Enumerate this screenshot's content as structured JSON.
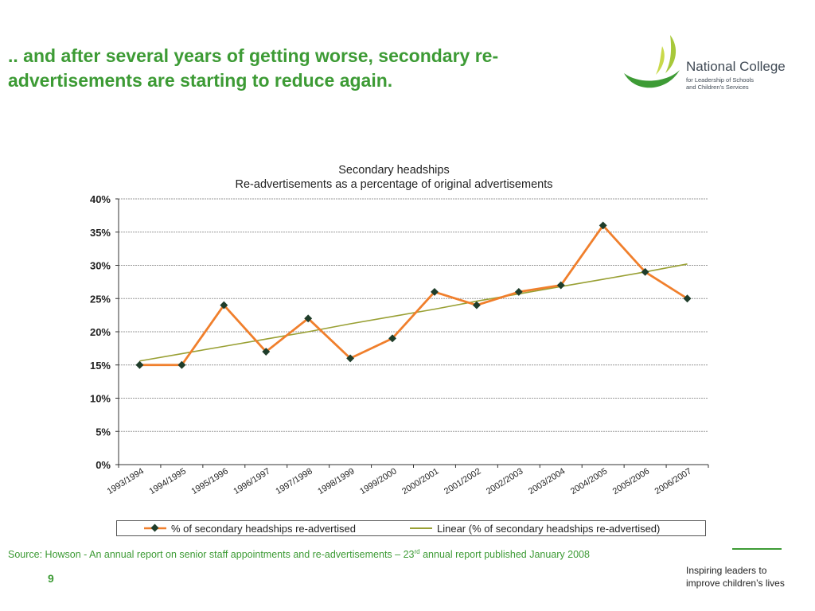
{
  "slide": {
    "title_line1": ".. and after several years of getting worse, secondary re-",
    "title_line2": "advertisements are starting to reduce again.",
    "page_number": "9",
    "source_before": "Source: Howson - An annual report on senior staff appointments and re-advertisements – 23",
    "source_sup": "rd",
    "source_after": " annual report published January 2008",
    "tagline_line1": "Inspiring leaders to",
    "tagline_line2": "improve children’s lives"
  },
  "logo": {
    "name": "National College",
    "sub_line1": "for Leadership of Schools",
    "sub_line2": "and Children’s Services"
  },
  "colors": {
    "title_green": "#3d9b35",
    "series_line": "#f07f2c",
    "marker": "#1f3d2a",
    "trend_line": "#99a034"
  },
  "chart_data": {
    "type": "line",
    "title_line1": "Secondary headships",
    "title_line2": "Re-advertisements as a percentage of original advertisements",
    "categories": [
      "1993/1994",
      "1994/1995",
      "1995/1996",
      "1996/1997",
      "1997/1998",
      "1998/1999",
      "1999/2000",
      "2000/2001",
      "2001/2002",
      "2002/2003",
      "2003/2004",
      "2004/2005",
      "2005/2006",
      "2006/2007"
    ],
    "series": [
      {
        "name": "% of secondary headships re-advertised",
        "values": [
          15,
          15,
          24,
          17,
          22,
          16,
          19,
          26,
          24,
          26,
          27,
          36,
          29,
          25
        ]
      },
      {
        "name": "Linear (% of secondary headships re-advertised)",
        "values": [
          15.6,
          16.7,
          17.8,
          18.9,
          20.0,
          21.2,
          22.3,
          23.4,
          24.6,
          25.7,
          26.8,
          27.9,
          29.0,
          30.2
        ]
      }
    ],
    "y_ticks": [
      "0%",
      "5%",
      "10%",
      "15%",
      "20%",
      "25%",
      "30%",
      "35%",
      "40%"
    ],
    "ylim": [
      0,
      40
    ],
    "grid": true,
    "legend": "bottom"
  }
}
